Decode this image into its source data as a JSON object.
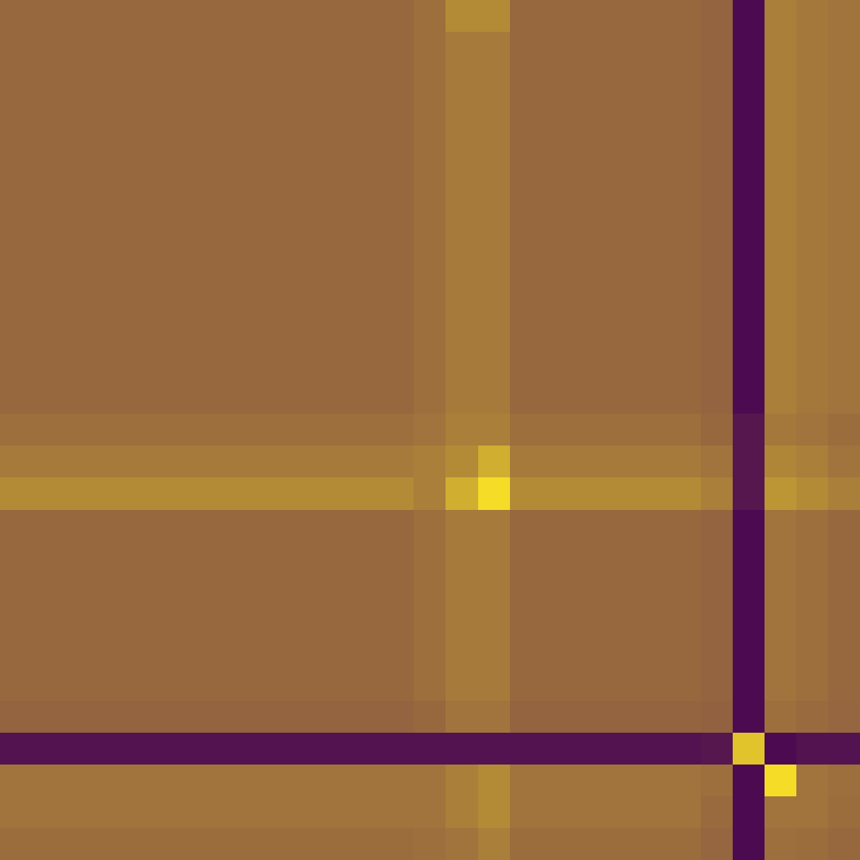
{
  "chart_data": {
    "type": "heatmap",
    "tick_labels": false,
    "colors": [
      "#440154",
      "#fde725"
    ],
    "zlim": [
      0,
      1
    ],
    "cells": [
      [
        0.45,
        0.45,
        0.45,
        0.45,
        0.45,
        0.45,
        0.45,
        0.45,
        0.45,
        0.45,
        0.45,
        0.45,
        0.45,
        0.48,
        0.6,
        0.6,
        0.45,
        0.45,
        0.45,
        0.45,
        0.45,
        0.45,
        0.43,
        0.05,
        0.55,
        0.52,
        0.5
      ],
      [
        0.45,
        0.45,
        0.45,
        0.45,
        0.45,
        0.45,
        0.45,
        0.45,
        0.45,
        0.45,
        0.45,
        0.45,
        0.45,
        0.48,
        0.53,
        0.53,
        0.45,
        0.45,
        0.45,
        0.45,
        0.45,
        0.45,
        0.43,
        0.05,
        0.55,
        0.52,
        0.5
      ],
      [
        0.45,
        0.45,
        0.45,
        0.45,
        0.45,
        0.45,
        0.45,
        0.45,
        0.45,
        0.45,
        0.45,
        0.45,
        0.45,
        0.48,
        0.53,
        0.53,
        0.45,
        0.45,
        0.45,
        0.45,
        0.45,
        0.45,
        0.43,
        0.05,
        0.55,
        0.52,
        0.5
      ],
      [
        0.45,
        0.45,
        0.45,
        0.45,
        0.45,
        0.45,
        0.45,
        0.45,
        0.45,
        0.45,
        0.45,
        0.45,
        0.45,
        0.48,
        0.53,
        0.53,
        0.45,
        0.45,
        0.45,
        0.45,
        0.45,
        0.45,
        0.43,
        0.05,
        0.55,
        0.52,
        0.5
      ],
      [
        0.45,
        0.45,
        0.45,
        0.45,
        0.45,
        0.45,
        0.45,
        0.45,
        0.45,
        0.45,
        0.45,
        0.45,
        0.45,
        0.48,
        0.53,
        0.53,
        0.45,
        0.45,
        0.45,
        0.45,
        0.45,
        0.45,
        0.43,
        0.05,
        0.55,
        0.52,
        0.5
      ],
      [
        0.45,
        0.45,
        0.45,
        0.45,
        0.45,
        0.45,
        0.45,
        0.45,
        0.45,
        0.45,
        0.45,
        0.45,
        0.45,
        0.48,
        0.53,
        0.53,
        0.45,
        0.45,
        0.45,
        0.45,
        0.45,
        0.45,
        0.43,
        0.05,
        0.55,
        0.52,
        0.5
      ],
      [
        0.45,
        0.45,
        0.45,
        0.45,
        0.45,
        0.45,
        0.45,
        0.45,
        0.45,
        0.45,
        0.45,
        0.45,
        0.45,
        0.48,
        0.53,
        0.53,
        0.45,
        0.45,
        0.45,
        0.45,
        0.45,
        0.45,
        0.43,
        0.05,
        0.55,
        0.52,
        0.5
      ],
      [
        0.45,
        0.45,
        0.45,
        0.45,
        0.45,
        0.45,
        0.45,
        0.45,
        0.45,
        0.45,
        0.45,
        0.45,
        0.45,
        0.48,
        0.53,
        0.53,
        0.45,
        0.45,
        0.45,
        0.45,
        0.45,
        0.45,
        0.43,
        0.05,
        0.55,
        0.52,
        0.5
      ],
      [
        0.45,
        0.45,
        0.45,
        0.45,
        0.45,
        0.45,
        0.45,
        0.45,
        0.45,
        0.45,
        0.45,
        0.45,
        0.45,
        0.48,
        0.53,
        0.53,
        0.45,
        0.45,
        0.45,
        0.45,
        0.45,
        0.45,
        0.43,
        0.05,
        0.55,
        0.52,
        0.5
      ],
      [
        0.45,
        0.45,
        0.45,
        0.45,
        0.45,
        0.45,
        0.45,
        0.45,
        0.45,
        0.45,
        0.45,
        0.45,
        0.45,
        0.48,
        0.53,
        0.53,
        0.45,
        0.45,
        0.45,
        0.45,
        0.45,
        0.45,
        0.43,
        0.05,
        0.55,
        0.52,
        0.5
      ],
      [
        0.45,
        0.45,
        0.45,
        0.45,
        0.45,
        0.45,
        0.45,
        0.45,
        0.45,
        0.45,
        0.45,
        0.45,
        0.45,
        0.48,
        0.53,
        0.53,
        0.45,
        0.45,
        0.45,
        0.45,
        0.45,
        0.45,
        0.43,
        0.05,
        0.55,
        0.52,
        0.5
      ],
      [
        0.45,
        0.45,
        0.45,
        0.45,
        0.45,
        0.45,
        0.45,
        0.45,
        0.45,
        0.45,
        0.45,
        0.45,
        0.45,
        0.48,
        0.53,
        0.53,
        0.45,
        0.45,
        0.45,
        0.45,
        0.45,
        0.45,
        0.43,
        0.05,
        0.55,
        0.52,
        0.5
      ],
      [
        0.45,
        0.45,
        0.45,
        0.45,
        0.45,
        0.45,
        0.45,
        0.45,
        0.45,
        0.45,
        0.45,
        0.45,
        0.45,
        0.48,
        0.53,
        0.53,
        0.45,
        0.45,
        0.45,
        0.45,
        0.45,
        0.45,
        0.43,
        0.05,
        0.55,
        0.52,
        0.5
      ],
      [
        0.48,
        0.48,
        0.48,
        0.48,
        0.48,
        0.48,
        0.48,
        0.48,
        0.48,
        0.48,
        0.48,
        0.48,
        0.48,
        0.5,
        0.55,
        0.55,
        0.48,
        0.48,
        0.48,
        0.48,
        0.48,
        0.48,
        0.45,
        0.1,
        0.52,
        0.5,
        0.47
      ],
      [
        0.53,
        0.53,
        0.53,
        0.53,
        0.53,
        0.53,
        0.53,
        0.53,
        0.53,
        0.53,
        0.53,
        0.53,
        0.53,
        0.55,
        0.6,
        0.75,
        0.53,
        0.53,
        0.53,
        0.53,
        0.53,
        0.53,
        0.5,
        0.1,
        0.58,
        0.55,
        0.5
      ],
      [
        0.6,
        0.6,
        0.6,
        0.6,
        0.6,
        0.6,
        0.6,
        0.6,
        0.6,
        0.6,
        0.6,
        0.6,
        0.6,
        0.55,
        0.75,
        0.95,
        0.6,
        0.6,
        0.6,
        0.6,
        0.6,
        0.6,
        0.55,
        0.1,
        0.65,
        0.6,
        0.55
      ],
      [
        0.45,
        0.45,
        0.45,
        0.45,
        0.45,
        0.45,
        0.45,
        0.45,
        0.45,
        0.45,
        0.45,
        0.45,
        0.45,
        0.48,
        0.53,
        0.53,
        0.45,
        0.45,
        0.45,
        0.45,
        0.45,
        0.45,
        0.43,
        0.05,
        0.5,
        0.48,
        0.45
      ],
      [
        0.45,
        0.45,
        0.45,
        0.45,
        0.45,
        0.45,
        0.45,
        0.45,
        0.45,
        0.45,
        0.45,
        0.45,
        0.45,
        0.48,
        0.53,
        0.53,
        0.45,
        0.45,
        0.45,
        0.45,
        0.45,
        0.45,
        0.43,
        0.05,
        0.5,
        0.48,
        0.45
      ],
      [
        0.45,
        0.45,
        0.45,
        0.45,
        0.45,
        0.45,
        0.45,
        0.45,
        0.45,
        0.45,
        0.45,
        0.45,
        0.45,
        0.48,
        0.53,
        0.53,
        0.45,
        0.45,
        0.45,
        0.45,
        0.45,
        0.45,
        0.43,
        0.05,
        0.5,
        0.48,
        0.45
      ],
      [
        0.45,
        0.45,
        0.45,
        0.45,
        0.45,
        0.45,
        0.45,
        0.45,
        0.45,
        0.45,
        0.45,
        0.45,
        0.45,
        0.48,
        0.53,
        0.53,
        0.45,
        0.45,
        0.45,
        0.45,
        0.45,
        0.45,
        0.43,
        0.05,
        0.5,
        0.48,
        0.45
      ],
      [
        0.45,
        0.45,
        0.45,
        0.45,
        0.45,
        0.45,
        0.45,
        0.45,
        0.45,
        0.45,
        0.45,
        0.45,
        0.45,
        0.48,
        0.53,
        0.53,
        0.45,
        0.45,
        0.45,
        0.45,
        0.45,
        0.45,
        0.43,
        0.05,
        0.5,
        0.48,
        0.45
      ],
      [
        0.45,
        0.45,
        0.45,
        0.45,
        0.45,
        0.45,
        0.45,
        0.45,
        0.45,
        0.45,
        0.45,
        0.45,
        0.45,
        0.48,
        0.53,
        0.53,
        0.45,
        0.45,
        0.45,
        0.45,
        0.45,
        0.45,
        0.43,
        0.05,
        0.5,
        0.48,
        0.45
      ],
      [
        0.43,
        0.43,
        0.43,
        0.43,
        0.43,
        0.43,
        0.43,
        0.43,
        0.43,
        0.43,
        0.43,
        0.43,
        0.43,
        0.45,
        0.5,
        0.5,
        0.43,
        0.43,
        0.43,
        0.43,
        0.43,
        0.43,
        0.42,
        0.05,
        0.48,
        0.46,
        0.44
      ],
      [
        0.08,
        0.08,
        0.08,
        0.08,
        0.08,
        0.08,
        0.08,
        0.08,
        0.08,
        0.08,
        0.08,
        0.08,
        0.08,
        0.08,
        0.08,
        0.08,
        0.08,
        0.08,
        0.08,
        0.08,
        0.08,
        0.08,
        0.1,
        0.85,
        0.05,
        0.08,
        0.08
      ],
      [
        0.5,
        0.5,
        0.5,
        0.5,
        0.5,
        0.5,
        0.5,
        0.5,
        0.5,
        0.5,
        0.5,
        0.5,
        0.5,
        0.5,
        0.55,
        0.6,
        0.5,
        0.5,
        0.5,
        0.5,
        0.5,
        0.5,
        0.48,
        0.05,
        0.95,
        0.5,
        0.48
      ],
      [
        0.5,
        0.5,
        0.5,
        0.5,
        0.5,
        0.5,
        0.5,
        0.5,
        0.5,
        0.5,
        0.5,
        0.5,
        0.5,
        0.5,
        0.55,
        0.6,
        0.5,
        0.5,
        0.5,
        0.5,
        0.5,
        0.5,
        0.46,
        0.05,
        0.5,
        0.5,
        0.47
      ],
      [
        0.47,
        0.47,
        0.47,
        0.47,
        0.47,
        0.47,
        0.47,
        0.47,
        0.47,
        0.47,
        0.47,
        0.47,
        0.47,
        0.48,
        0.5,
        0.55,
        0.47,
        0.47,
        0.47,
        0.47,
        0.47,
        0.47,
        0.44,
        0.05,
        0.48,
        0.47,
        0.45
      ]
    ]
  }
}
